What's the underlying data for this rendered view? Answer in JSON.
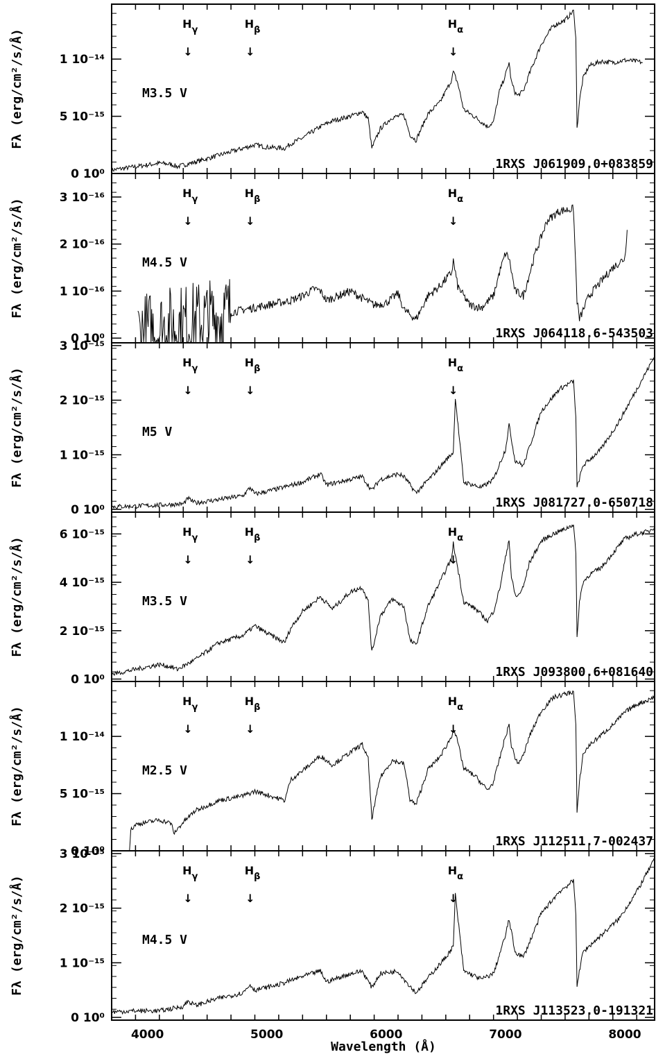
{
  "chart_data": {
    "type": "line",
    "xlabel": "Wavelength (Å)",
    "xlim": [
      3700,
      8250
    ],
    "x_ticks": [
      "4000",
      "5000",
      "6000",
      "7000",
      "8000"
    ],
    "x_tick_values": [
      4000,
      5000,
      6000,
      7000,
      8000
    ],
    "line_markers": [
      {
        "name": "γ",
        "wavelength": 4340
      },
      {
        "name": "β",
        "wavelength": 4861
      },
      {
        "name": "α",
        "wavelength": 6563
      }
    ],
    "arrow_glyph": "↓",
    "panels": [
      {
        "object": "1RXS J061909.0+083859",
        "spectral_type": "M3.5 V",
        "ylabel": "Fλ (erg/cm²/s/Å)",
        "ylim": [
          0,
          1.48e-14
        ],
        "y_ticks": [
          {
            "value": 0,
            "label": "0 10⁰"
          },
          {
            "value": 5e-15,
            "label": "5 10⁻¹⁵"
          },
          {
            "value": 1e-14,
            "label": "1 10⁻¹⁴"
          }
        ],
        "x": [
          3700,
          3900,
          4100,
          4200,
          4250,
          4400,
          4600,
          4800,
          4900,
          5000,
          5150,
          5200,
          5300,
          5450,
          5550,
          5700,
          5800,
          5850,
          5880,
          5950,
          6050,
          6150,
          6200,
          6250,
          6350,
          6450,
          6550,
          6563,
          6600,
          6650,
          6750,
          6850,
          6900,
          6950,
          7000,
          7030,
          7050,
          7080,
          7100,
          7150,
          7200,
          7300,
          7400,
          7500,
          7570,
          7590,
          7600,
          7620,
          7650,
          7700,
          7800,
          7900,
          8000,
          8100,
          8150
        ],
        "y": [
          0.3,
          0.6,
          0.9,
          0.8,
          0.6,
          1.0,
          1.6,
          2.2,
          2.5,
          2.3,
          2.2,
          2.6,
          3.1,
          4.1,
          4.6,
          5.0,
          5.4,
          4.8,
          2.2,
          3.9,
          4.9,
          5.1,
          3.4,
          2.9,
          5.2,
          6.2,
          8.2,
          8.9,
          7.9,
          5.6,
          4.9,
          4.1,
          4.5,
          7.2,
          8.6,
          9.7,
          8.0,
          7.1,
          6.8,
          7.2,
          8.7,
          11.3,
          12.9,
          13.4,
          14.2,
          12.0,
          3.9,
          6.3,
          8.3,
          9.4,
          9.8,
          9.7,
          9.9,
          9.8,
          9.7
        ],
        "unit_scale": 1e-15
      },
      {
        "object": "1RXS J064118.6-543503",
        "spectral_type": "M4.5 V",
        "ylabel": "Fλ (erg/cm²/s/Å)",
        "ylim": [
          -1e-17,
          3.5e-16
        ],
        "y_ticks": [
          {
            "value": 0,
            "label": "0 10⁰"
          },
          {
            "value": 1e-16,
            "label": "1 10⁻¹⁶"
          },
          {
            "value": 2e-16,
            "label": "2 10⁻¹⁶"
          },
          {
            "value": 3e-16,
            "label": "3 10⁻¹⁶"
          }
        ],
        "x": [
          3920,
          4000,
          4100,
          4200,
          4300,
          4400,
          4500,
          4600,
          4700,
          4800,
          4900,
          5000,
          5100,
          5200,
          5300,
          5400,
          5450,
          5500,
          5600,
          5700,
          5800,
          5900,
          6000,
          6050,
          6100,
          6150,
          6250,
          6350,
          6450,
          6550,
          6563,
          6600,
          6700,
          6800,
          6900,
          6950,
          7000,
          7030,
          7080,
          7150,
          7250,
          7350,
          7450,
          7570,
          7600,
          7620,
          7700,
          7800,
          7900,
          8000,
          8020
        ],
        "y": [
          0.1,
          0.15,
          0.2,
          0.25,
          0.3,
          0.35,
          0.4,
          0.45,
          0.55,
          0.6,
          0.65,
          0.7,
          0.75,
          0.8,
          0.9,
          1.05,
          1.0,
          0.8,
          0.9,
          1.0,
          0.85,
          0.7,
          0.75,
          0.85,
          0.95,
          0.6,
          0.4,
          0.9,
          1.1,
          1.4,
          1.65,
          1.1,
          0.7,
          0.65,
          0.9,
          1.4,
          1.8,
          1.7,
          1.0,
          0.9,
          1.8,
          2.5,
          2.7,
          2.75,
          0.8,
          0.4,
          0.9,
          1.2,
          1.5,
          1.7,
          2.3
        ],
        "unit_scale": 1e-16
      },
      {
        "object": "1RXS J081727.0-650718",
        "spectral_type": "M5 V",
        "ylabel": "Fλ (erg/cm²/s/Å)",
        "ylim": [
          -5e-17,
          3.05e-15
        ],
        "y_ticks": [
          {
            "value": 0,
            "label": "0 10⁰"
          },
          {
            "value": 1e-15,
            "label": "1 10⁻¹⁵"
          },
          {
            "value": 2e-15,
            "label": "2 10⁻¹⁵"
          },
          {
            "value": 3e-15,
            "label": "3 10⁻¹⁵"
          }
        ],
        "x": [
          3700,
          3900,
          4100,
          4300,
          4340,
          4400,
          4600,
          4800,
          4861,
          4900,
          5100,
          5300,
          5450,
          5500,
          5700,
          5800,
          5880,
          5950,
          6100,
          6150,
          6250,
          6400,
          6500,
          6563,
          6580,
          6650,
          6800,
          6900,
          7000,
          7030,
          7080,
          7150,
          7300,
          7450,
          7570,
          7590,
          7600,
          7650,
          7800,
          7950,
          8100,
          8200,
          8250
        ],
        "y": [
          0.05,
          0.06,
          0.08,
          0.1,
          0.2,
          0.12,
          0.18,
          0.25,
          0.4,
          0.28,
          0.38,
          0.5,
          0.65,
          0.45,
          0.55,
          0.6,
          0.35,
          0.55,
          0.65,
          0.6,
          0.3,
          0.65,
          0.9,
          1.05,
          2.05,
          0.5,
          0.4,
          0.55,
          1.1,
          1.55,
          0.9,
          0.8,
          1.8,
          2.2,
          2.35,
          1.7,
          0.4,
          0.8,
          1.1,
          1.6,
          2.2,
          2.6,
          2.8
        ],
        "unit_scale": 1e-15
      },
      {
        "object": "1RXS J093800.6+081640",
        "spectral_type": "M3.5 V",
        "ylabel": "Fλ (erg/cm²/s/Å)",
        "ylim": [
          -1e-16,
          6.9e-15
        ],
        "y_ticks": [
          {
            "value": 0,
            "label": "0 10⁰"
          },
          {
            "value": 2e-15,
            "label": "2 10⁻¹⁵"
          },
          {
            "value": 4e-15,
            "label": "4 10⁻¹⁵"
          },
          {
            "value": 6e-15,
            "label": "6 10⁻¹⁵"
          }
        ],
        "x": [
          3700,
          3900,
          4100,
          4200,
          4250,
          4400,
          4600,
          4800,
          4900,
          5000,
          5150,
          5200,
          5300,
          5450,
          5550,
          5700,
          5800,
          5850,
          5880,
          5950,
          6050,
          6150,
          6200,
          6250,
          6350,
          6450,
          6550,
          6563,
          6600,
          6650,
          6750,
          6850,
          6900,
          6950,
          7000,
          7030,
          7050,
          7080,
          7100,
          7150,
          7200,
          7300,
          7400,
          7500,
          7570,
          7590,
          7600,
          7620,
          7650,
          7700,
          7800,
          7900,
          8000,
          8100,
          8200,
          8250
        ],
        "y": [
          0.2,
          0.4,
          0.6,
          0.5,
          0.4,
          0.8,
          1.5,
          1.8,
          2.2,
          1.9,
          1.5,
          2.1,
          2.8,
          3.4,
          2.9,
          3.6,
          3.8,
          3.2,
          1.1,
          2.6,
          3.3,
          3.0,
          1.6,
          1.4,
          3.0,
          4.0,
          5.0,
          5.6,
          4.6,
          3.2,
          2.9,
          2.4,
          2.8,
          3.7,
          5.0,
          5.8,
          4.2,
          3.5,
          3.4,
          3.8,
          4.8,
          5.7,
          6.0,
          6.2,
          6.4,
          5.2,
          1.7,
          3.2,
          4.0,
          4.3,
          4.6,
          5.2,
          5.8,
          6.0,
          6.1,
          6.3
        ],
        "unit_scale": 1e-15
      },
      {
        "object": "1RXS J112511.7-002437",
        "spectral_type": "M2.5 V",
        "ylabel": "Fλ (erg/cm²/s/Å)",
        "ylim": [
          0,
          1.48e-14
        ],
        "y_ticks": [
          {
            "value": 0,
            "label": "0 10⁰"
          },
          {
            "value": 5e-15,
            "label": "5 10⁻¹⁵"
          },
          {
            "value": 1e-14,
            "label": "1 10⁻¹⁴"
          }
        ],
        "x": [
          3850,
          3860,
          3900,
          4000,
          4100,
          4200,
          4220,
          4300,
          4400,
          4600,
          4800,
          4900,
          5000,
          5150,
          5200,
          5300,
          5450,
          5550,
          5700,
          5800,
          5850,
          5880,
          5950,
          6050,
          6150,
          6200,
          6250,
          6350,
          6450,
          6550,
          6563,
          6600,
          6650,
          6750,
          6850,
          6900,
          6950,
          7000,
          7030,
          7050,
          7080,
          7100,
          7150,
          7200,
          7300,
          7400,
          7500,
          7570,
          7590,
          7600,
          7620,
          7650,
          7700,
          7800,
          7900,
          8000,
          8100,
          8200,
          8250
        ],
        "y": [
          0.1,
          1.8,
          2.3,
          2.5,
          2.7,
          2.4,
          1.5,
          2.5,
          3.5,
          4.4,
          4.8,
          5.2,
          4.9,
          4.4,
          6.2,
          7.0,
          8.3,
          7.5,
          8.6,
          9.3,
          8.0,
          2.8,
          6.4,
          7.9,
          7.6,
          4.5,
          4.0,
          7.1,
          8.2,
          10.0,
          10.8,
          9.5,
          7.2,
          6.5,
          5.3,
          6.0,
          8.0,
          10.0,
          11.0,
          9.2,
          8.2,
          7.6,
          8.3,
          10.0,
          12.2,
          13.4,
          13.7,
          13.9,
          11.0,
          3.2,
          6.0,
          8.4,
          9.2,
          10.1,
          11.0,
          12.1,
          12.8,
          13.2,
          13.5
        ],
        "unit_scale": 1e-15
      },
      {
        "object": "1RXS J113523.0-191321",
        "spectral_type": "M4.5 V",
        "ylabel": "Fλ (erg/cm²/s/Å)",
        "ylim": [
          -5e-17,
          3.05e-15
        ],
        "y_ticks": [
          {
            "value": 0,
            "label": "0 10⁰"
          },
          {
            "value": 1e-15,
            "label": "1 10⁻¹⁵"
          },
          {
            "value": 2e-15,
            "label": "2 10⁻¹⁵"
          },
          {
            "value": 3e-15,
            "label": "3 10⁻¹⁵"
          }
        ],
        "x": [
          3700,
          3900,
          4100,
          4300,
          4340,
          4400,
          4600,
          4800,
          4861,
          4900,
          5100,
          5300,
          5450,
          5500,
          5700,
          5800,
          5880,
          5950,
          6100,
          6150,
          6250,
          6400,
          6500,
          6563,
          6580,
          6650,
          6800,
          6900,
          7000,
          7030,
          7080,
          7150,
          7300,
          7450,
          7570,
          7590,
          7600,
          7650,
          7800,
          7950,
          8100,
          8200,
          8250
        ],
        "y": [
          0.1,
          0.12,
          0.12,
          0.2,
          0.3,
          0.22,
          0.35,
          0.45,
          0.6,
          0.5,
          0.6,
          0.75,
          0.85,
          0.65,
          0.8,
          0.85,
          0.55,
          0.8,
          0.85,
          0.7,
          0.45,
          0.85,
          1.1,
          1.3,
          2.25,
          0.85,
          0.7,
          0.8,
          1.5,
          1.8,
          1.2,
          1.1,
          1.9,
          2.3,
          2.5,
          1.9,
          0.6,
          1.2,
          1.5,
          1.8,
          2.3,
          2.7,
          2.9
        ],
        "unit_scale": 1e-15
      }
    ]
  }
}
